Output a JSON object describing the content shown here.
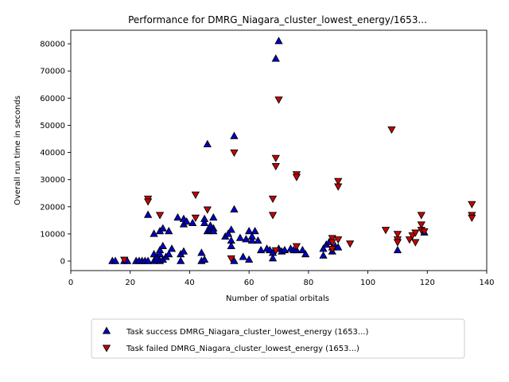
{
  "chart_data": {
    "type": "scatter",
    "title": "Performance for DMRG_Niagara_cluster_lowest_energy/1653...",
    "xlabel": "Number of spatial orbitals",
    "ylabel": "Overall run time in seconds",
    "xlim": [
      0,
      140
    ],
    "ylim": [
      -3500,
      85000
    ],
    "x_ticks": [
      0,
      20,
      40,
      60,
      80,
      100,
      120,
      140
    ],
    "y_ticks": [
      0,
      10000,
      20000,
      30000,
      40000,
      50000,
      60000,
      70000,
      80000
    ],
    "grid": false,
    "legend_position": "below plot",
    "series": [
      {
        "name": "Task success DMRG_Niagara_cluster_lowest_energy (1653...)",
        "marker": "triangle-up",
        "color": "#0000cc",
        "points": [
          [
            14,
            0
          ],
          [
            15,
            0
          ],
          [
            18,
            0
          ],
          [
            19,
            0
          ],
          [
            22,
            0
          ],
          [
            23,
            0
          ],
          [
            24,
            0
          ],
          [
            25,
            0
          ],
          [
            26,
            0
          ],
          [
            26,
            17000
          ],
          [
            28,
            0
          ],
          [
            28,
            2500
          ],
          [
            28,
            10000
          ],
          [
            29,
            500
          ],
          [
            29,
            1500
          ],
          [
            30,
            0
          ],
          [
            30,
            2500
          ],
          [
            30,
            4000
          ],
          [
            30,
            11000
          ],
          [
            31,
            500
          ],
          [
            31,
            5500
          ],
          [
            31,
            12000
          ],
          [
            32,
            1500
          ],
          [
            33,
            2500
          ],
          [
            33,
            11000
          ],
          [
            34,
            4500
          ],
          [
            36,
            16000
          ],
          [
            37,
            0
          ],
          [
            37,
            2500
          ],
          [
            38,
            3500
          ],
          [
            38,
            13500
          ],
          [
            38,
            15500
          ],
          [
            39,
            14500
          ],
          [
            41,
            14000
          ],
          [
            44,
            3000
          ],
          [
            44,
            0
          ],
          [
            45,
            500
          ],
          [
            45,
            14000
          ],
          [
            45,
            15500
          ],
          [
            46,
            43000
          ],
          [
            46,
            11000
          ],
          [
            47,
            11500
          ],
          [
            47,
            13000
          ],
          [
            48,
            12000
          ],
          [
            48,
            16000
          ],
          [
            48,
            11000
          ],
          [
            52,
            9000
          ],
          [
            53,
            10000
          ],
          [
            54,
            7500
          ],
          [
            54,
            5500
          ],
          [
            54,
            11500
          ],
          [
            55,
            0
          ],
          [
            55,
            19000
          ],
          [
            55,
            46000
          ],
          [
            57,
            8500
          ],
          [
            58,
            1500
          ],
          [
            59,
            8000
          ],
          [
            60,
            11000
          ],
          [
            60,
            500
          ],
          [
            61,
            7500
          ],
          [
            61,
            9000
          ],
          [
            62,
            11000
          ],
          [
            63,
            7500
          ],
          [
            64,
            4000
          ],
          [
            66,
            4500
          ],
          [
            67,
            4000
          ],
          [
            68,
            3000
          ],
          [
            68,
            1000
          ],
          [
            69,
            74500
          ],
          [
            70,
            81000
          ],
          [
            70,
            4500
          ],
          [
            71,
            3500
          ],
          [
            72,
            4000
          ],
          [
            74,
            4500
          ],
          [
            75,
            4000
          ],
          [
            76,
            4000
          ],
          [
            78,
            4000
          ],
          [
            79,
            2500
          ],
          [
            85,
            2000
          ],
          [
            85,
            4500
          ],
          [
            86,
            6000
          ],
          [
            87,
            7000
          ],
          [
            88,
            5000
          ],
          [
            88,
            3500
          ],
          [
            89,
            5500
          ],
          [
            90,
            5000
          ],
          [
            110,
            4000
          ],
          [
            119,
            10500
          ]
        ]
      },
      {
        "name": "Task failed DMRG_Niagara_cluster_lowest_energy (1653...)",
        "marker": "triangle-down",
        "color": "#cc0000",
        "points": [
          [
            18,
            500
          ],
          [
            26,
            23000
          ],
          [
            26,
            22000
          ],
          [
            30,
            17000
          ],
          [
            42,
            24500
          ],
          [
            42,
            16000
          ],
          [
            46,
            19000
          ],
          [
            54,
            1000
          ],
          [
            55,
            40000
          ],
          [
            68,
            23000
          ],
          [
            68,
            17000
          ],
          [
            69,
            38000
          ],
          [
            69,
            35000
          ],
          [
            69,
            4000
          ],
          [
            70,
            59500
          ],
          [
            76,
            32000
          ],
          [
            76,
            31000
          ],
          [
            76,
            5500
          ],
          [
            88,
            8500
          ],
          [
            88,
            7000
          ],
          [
            88,
            4500
          ],
          [
            90,
            29500
          ],
          [
            90,
            27500
          ],
          [
            90,
            8000
          ],
          [
            94,
            6500
          ],
          [
            106,
            11500
          ],
          [
            108,
            48500
          ],
          [
            110,
            10000
          ],
          [
            110,
            8000
          ],
          [
            110,
            7000
          ],
          [
            114,
            8000
          ],
          [
            115,
            9500
          ],
          [
            116,
            10500
          ],
          [
            116,
            7000
          ],
          [
            118,
            17000
          ],
          [
            118,
            13500
          ],
          [
            118,
            11500
          ],
          [
            119,
            11000
          ],
          [
            135,
            21000
          ],
          [
            135,
            17000
          ],
          [
            135,
            16000
          ]
        ]
      }
    ]
  }
}
